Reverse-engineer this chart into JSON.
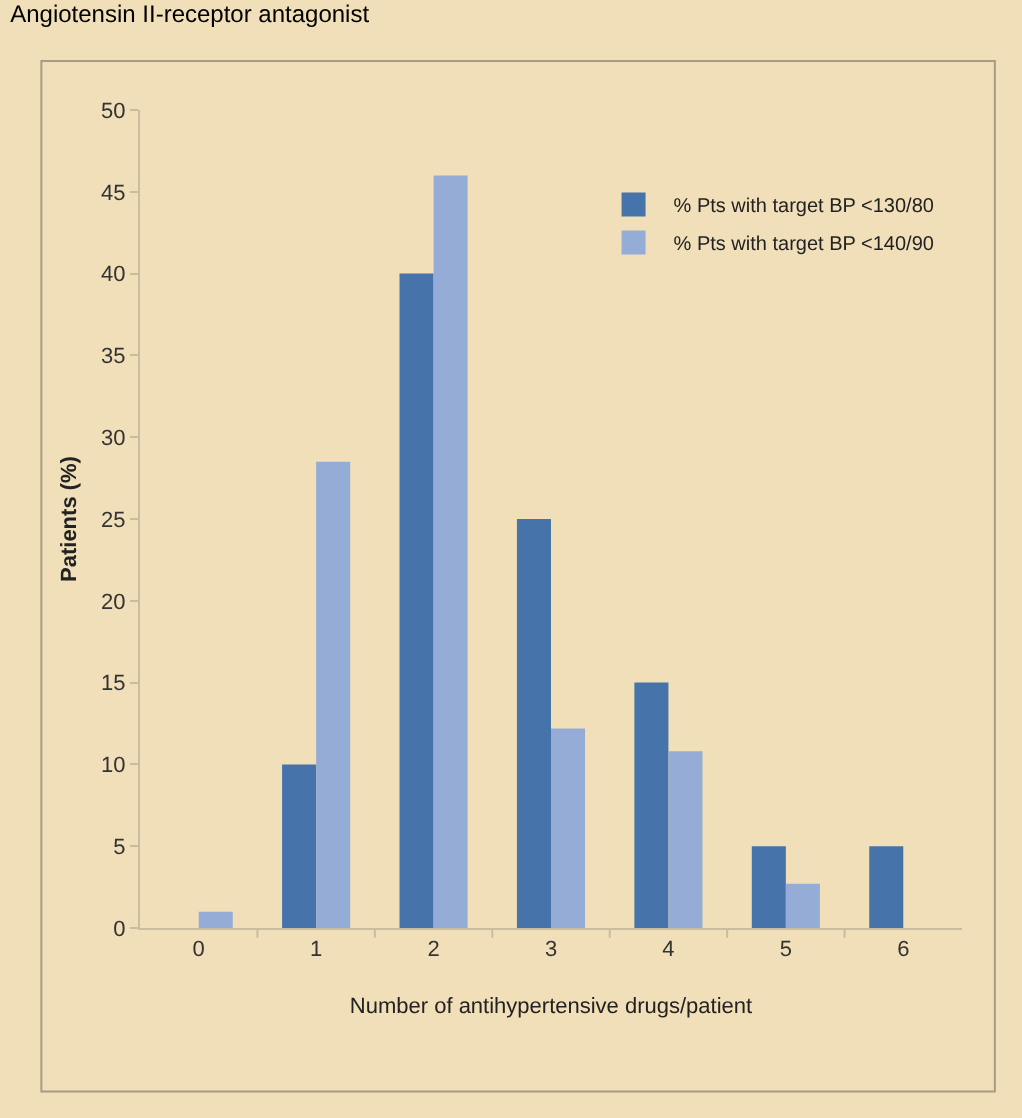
{
  "chart_data": {
    "type": "bar",
    "title": "Angiotensin II-receptor antagonist",
    "xlabel": "Number of antihypertensive drugs/patient",
    "ylabel": "Patients (%)",
    "categories": [
      "0",
      "1",
      "2",
      "3",
      "4",
      "5",
      "6"
    ],
    "series": [
      {
        "name": "% Pts with target BP <130/80",
        "color": "#4674aa",
        "values": [
          null,
          10,
          40,
          25,
          15,
          5,
          5
        ]
      },
      {
        "name": "% Pts with target BP <140/90",
        "color": "#95acd6",
        "values": [
          1,
          28.5,
          46,
          12.2,
          10.8,
          2.7,
          null
        ]
      }
    ],
    "ylim": [
      0,
      50
    ],
    "yticks": [
      0,
      5,
      10,
      15,
      20,
      25,
      30,
      35,
      40,
      45,
      50
    ],
    "grid": false,
    "legend": "top right"
  }
}
